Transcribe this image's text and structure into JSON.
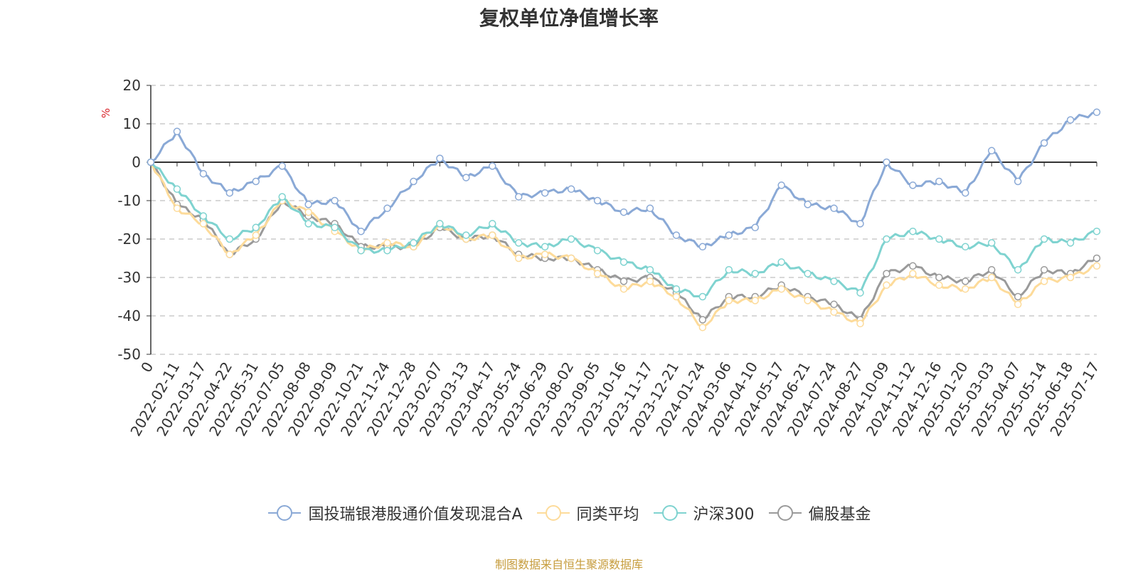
{
  "chart_data": {
    "type": "line",
    "title": "复权单位净值增长率",
    "ylabel": "%",
    "ylim": [
      -50,
      20
    ],
    "yticks": [
      20,
      10,
      0,
      -10,
      -20,
      -30,
      -40,
      -50
    ],
    "grid": true,
    "legend_position": "bottom",
    "x_tick_labels": [
      "0",
      "2022-02-11",
      "2022-03-17",
      "2022-04-22",
      "2022-05-31",
      "2022-07-05",
      "2022-08-08",
      "2022-09-09",
      "2022-10-21",
      "2022-11-24",
      "2022-12-28",
      "2023-02-07",
      "2023-03-13",
      "2023-04-17",
      "2023-05-24",
      "2023-06-29",
      "2023-08-02",
      "2023-09-05",
      "2023-10-16",
      "2023-11-17",
      "2023-12-21",
      "2024-01-24",
      "2024-03-06",
      "2024-04-10",
      "2024-05-17",
      "2024-06-21",
      "2024-07-24",
      "2024-08-27",
      "2024-10-09",
      "2024-11-12",
      "2024-12-16",
      "2025-01-20",
      "2025-03-03",
      "2025-04-07",
      "2025-05-14",
      "2025-06-18",
      "2025-07-17"
    ],
    "series": [
      {
        "name": "国投瑞银港股通价值发现混合A",
        "color": "#8aa9d6",
        "values": [
          0,
          8,
          -3,
          -8,
          -5,
          -1,
          -11,
          -10,
          -18,
          -12,
          -5,
          1,
          -4,
          -1,
          -9,
          -8,
          -7,
          -10,
          -13,
          -12,
          -19,
          -22,
          -19,
          -17,
          -6,
          -11,
          -12,
          -16,
          0,
          -6,
          -5,
          -8,
          3,
          -5,
          5,
          11,
          13
        ]
      },
      {
        "name": "同类平均",
        "color": "#fddb9a",
        "values": [
          0,
          -12,
          -16,
          -24,
          -19,
          -10,
          -13,
          -18,
          -23,
          -21,
          -22,
          -16,
          -20,
          -19,
          -25,
          -24,
          -25,
          -29,
          -33,
          -31,
          -35,
          -43,
          -36,
          -36,
          -33,
          -36,
          -39,
          -42,
          -32,
          -29,
          -32,
          -33,
          -30,
          -37,
          -31,
          -30,
          -27
        ]
      },
      {
        "name": "沪深300",
        "color": "#7fd3d0",
        "values": [
          0,
          -7,
          -14,
          -20,
          -17,
          -9,
          -16,
          -17,
          -23,
          -23,
          -21,
          -16,
          -19,
          -16,
          -21,
          -22,
          -20,
          -23,
          -26,
          -28,
          -33,
          -35,
          -28,
          -29,
          -26,
          -29,
          -31,
          -34,
          -20,
          -18,
          -20,
          -22,
          -21,
          -28,
          -20,
          -21,
          -18
        ]
      },
      {
        "name": "偏股基金",
        "color": "#9a9a9a",
        "values": [
          0,
          -11,
          -15,
          -24,
          -20,
          -10,
          -14,
          -16,
          -22,
          -22,
          -22,
          -17,
          -20,
          -19,
          -24,
          -25,
          -25,
          -28,
          -31,
          -30,
          -34,
          -41,
          -35,
          -35,
          -32,
          -35,
          -37,
          -41,
          -29,
          -27,
          -30,
          -31,
          -28,
          -35,
          -28,
          -29,
          -25
        ]
      }
    ]
  },
  "source_note": "制图数据来自恒生聚源数据库"
}
